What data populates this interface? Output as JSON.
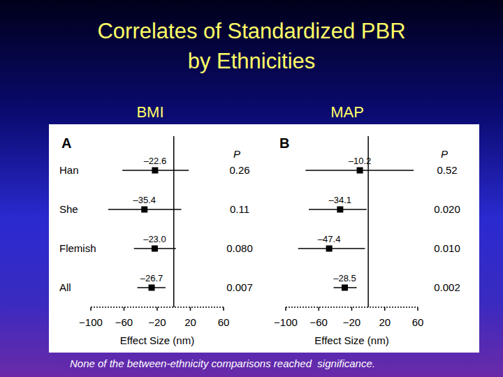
{
  "title": [
    "Correlates of Standardized PBR",
    "by Ethnicities"
  ],
  "footnote": "None of the between-ethnicity comparisons reached  significance.",
  "chart_data": [
    {
      "type": "forest",
      "title": "BMI",
      "subtitle": "A",
      "categories": [
        "Han",
        "She",
        "Flemish",
        "All"
      ],
      "values": [
        -22.6,
        -35.4,
        -23.0,
        -26.7
      ],
      "value_labels": [
        "–22.6",
        "–35.4",
        "–23.0",
        "–26.7"
      ],
      "data_labels": true,
      "ci_lower": [
        -62,
        -79,
        -48,
        -44
      ],
      "ci_upper": [
        18,
        9,
        2.5,
        -10
      ],
      "p_label": "P",
      "p_values": [
        0.26,
        0.11,
        {
          "value": 0.08,
          "label": "0.080"
        },
        0.007
      ],
      "reference_line": 0,
      "x_label": "Effect Size (nm)",
      "xlim": [
        -100,
        60
      ],
      "xticks": [
        -100,
        -60,
        -20,
        20,
        60
      ],
      "color": "#000000",
      "marker": "square"
    },
    {
      "type": "forest",
      "title": "MAP",
      "subtitle": "B",
      "categories": [
        null,
        null,
        null,
        null
      ],
      "values": [
        -10.2,
        -34.1,
        -47.4,
        -28.5
      ],
      "value_labels": [
        "–10.2",
        "–34.1",
        "–47.4",
        "–28.5"
      ],
      "data_labels": true,
      "ci_lower": [
        -76,
        -72,
        -85,
        -42
      ],
      "ci_upper": [
        55,
        -2,
        -4,
        -14
      ],
      "p_label": "P",
      "p_values": [
        0.52,
        {
          "value": 0.02,
          "label": "0.020"
        },
        {
          "value": 0.01,
          "label": "0.010"
        },
        0.002
      ],
      "reference_line": 0,
      "x_label": "Effect Size (nm)",
      "xlim": [
        -100,
        60
      ],
      "xticks": [
        -100,
        -60,
        -20,
        20,
        60
      ],
      "color": "#000000",
      "marker": "square"
    }
  ]
}
